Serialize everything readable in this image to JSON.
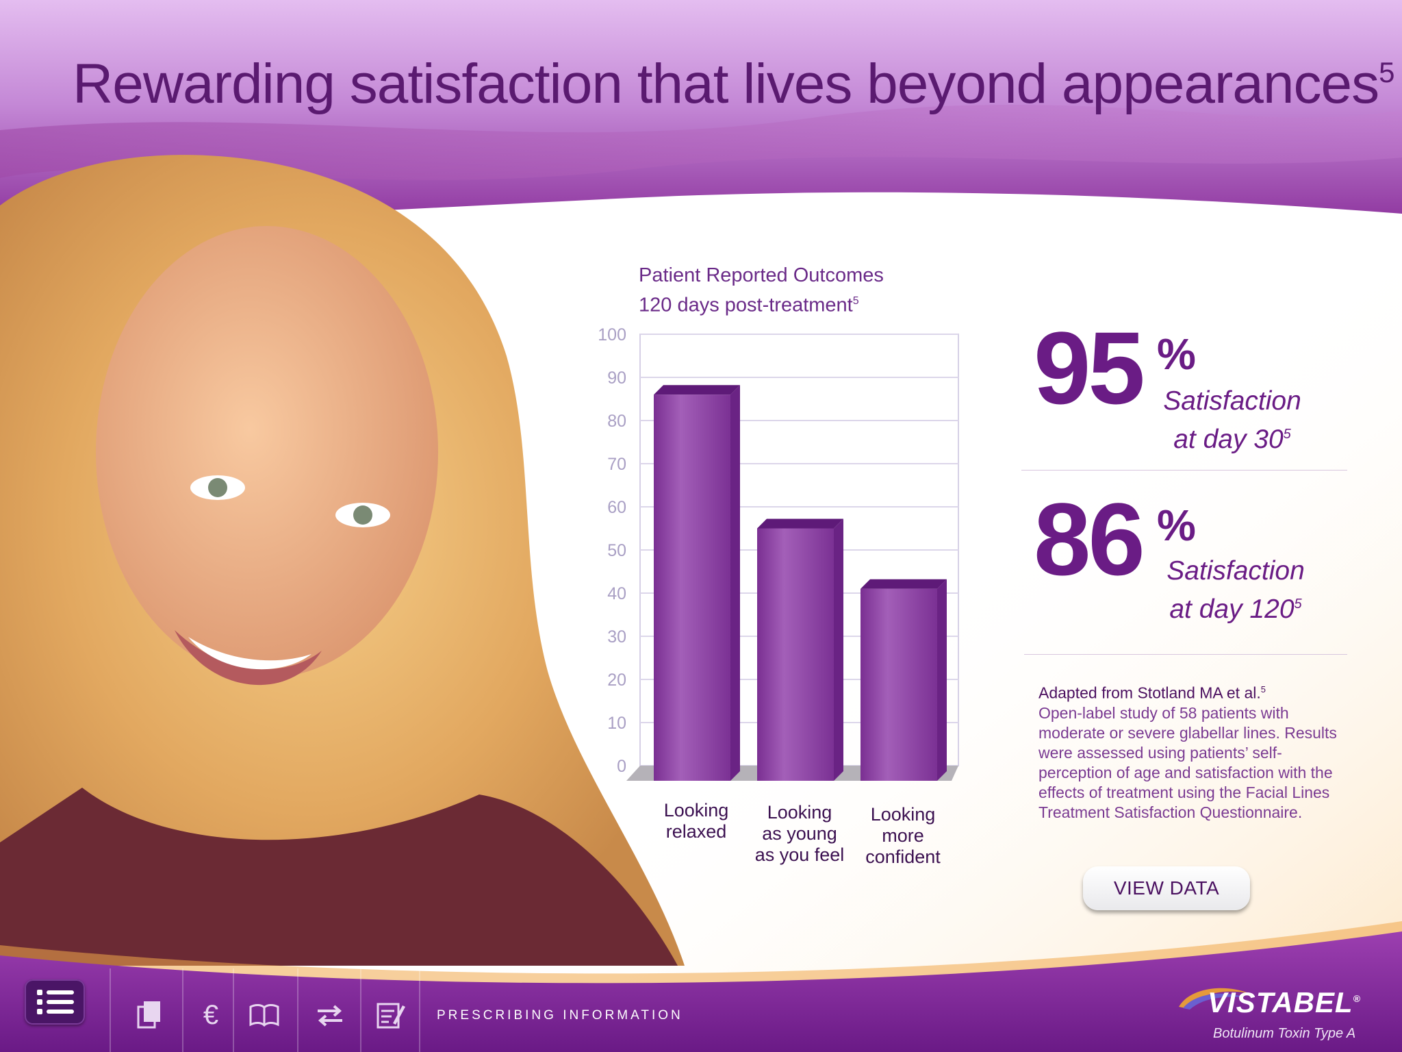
{
  "header": {
    "title": "Rewarding satisfaction that lives beyond appearances",
    "title_ref": "5"
  },
  "chart_data": {
    "type": "bar",
    "title": "Patient Reported Outcomes",
    "subtitle": "120 days post-treatment",
    "subtitle_ref": "5",
    "categories": [
      "Looking\nrelaxed",
      "Looking\nas young\nas you feel",
      "Looking\nmore\nconfident"
    ],
    "values": [
      86,
      55,
      41
    ],
    "yticks": [
      "0",
      "10",
      "20",
      "30",
      "40",
      "50",
      "60",
      "70",
      "80",
      "90",
      "100"
    ],
    "ylim": [
      0,
      100
    ],
    "grid": true,
    "color": "#8a3fa0"
  },
  "stats": [
    {
      "value": "95",
      "unit": "%",
      "line1": "Satisfaction",
      "line2": "at day 30",
      "ref": "5"
    },
    {
      "value": "86",
      "unit": "%",
      "line1": "Satisfaction",
      "line2": "at day 120",
      "ref": "5"
    }
  ],
  "note": {
    "head": "Adapted from Stotland MA et al.",
    "head_ref": "5",
    "body": "Open-label study of 58 patients with moderate or severe glabellar lines. Results were assessed using patients’ self-perception of age and satisfaction with the effects of treatment using the Facial Lines Treatment Satisfaction Questionnaire."
  },
  "button": {
    "label": "VIEW DATA"
  },
  "toolbar": {
    "icons": [
      "menu-list-icon",
      "pages-icon",
      "euro-icon",
      "book-icon",
      "swap-arrows-icon",
      "notes-edit-icon"
    ],
    "euro_glyph": "€",
    "prescribing": "PRESCRIBING INFORMATION"
  },
  "brand": {
    "name": "VISTABEL",
    "mark": "®",
    "tagline": "Botulinum Toxin Type A"
  }
}
